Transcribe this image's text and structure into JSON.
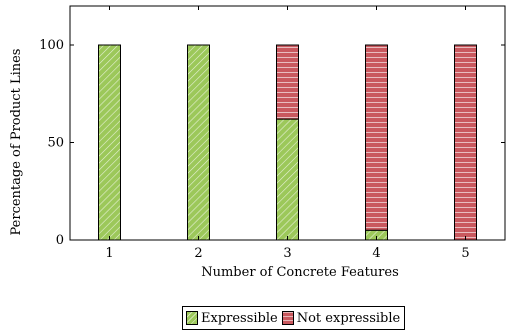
{
  "chart_data": {
    "type": "bar",
    "stacked": true,
    "categories": [
      "1",
      "2",
      "3",
      "4",
      "5"
    ],
    "series": [
      {
        "name": "Expressible",
        "values": [
          100,
          100,
          62,
          5,
          0
        ],
        "color": "#9cc85a",
        "pattern": "diagonal-hatch"
      },
      {
        "name": "Not expressible",
        "values": [
          0,
          0,
          38,
          95,
          100
        ],
        "color": "#c9585e",
        "pattern": "horizontal-lines"
      }
    ],
    "xlabel": "Number of Concrete Features",
    "ylabel": "Percentage of Product Lines",
    "yticks": [
      0,
      50,
      100
    ],
    "ylim": [
      0,
      120
    ],
    "grid": false,
    "legend_position": "bottom"
  }
}
